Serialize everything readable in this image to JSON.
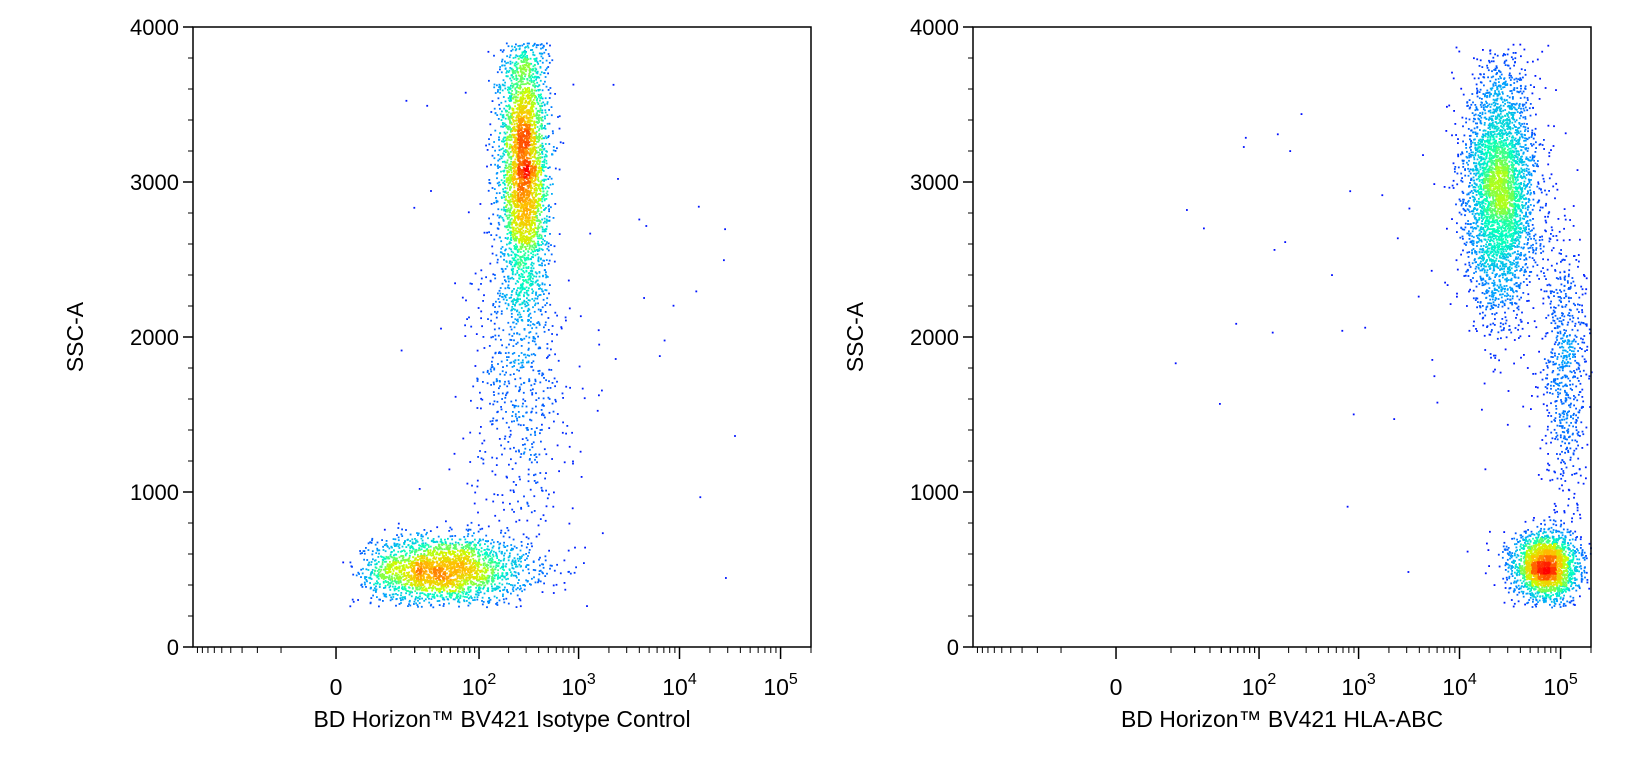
{
  "chart_data": [
    {
      "type": "scatter",
      "title": "",
      "xlabel": "BD Horizon™ BV421 Isotype Control",
      "ylabel": "SSC-A",
      "x_scale": "biexponential",
      "y_scale": "linear",
      "xlim": [
        -100,
        200000
      ],
      "ylim": [
        0,
        4000
      ],
      "grid": false,
      "colormap": [
        "#0000ff",
        "#00a0ff",
        "#00ffc0",
        "#c8ff00",
        "#ffc000",
        "#ff0000"
      ],
      "x_ticks": [
        {
          "value": 0,
          "base": "0",
          "exp": ""
        },
        {
          "value": 100,
          "base": "10",
          "exp": "2"
        },
        {
          "value": 1000,
          "base": "10",
          "exp": "3"
        },
        {
          "value": 10000,
          "base": "10",
          "exp": "4"
        },
        {
          "value": 100000,
          "base": "10",
          "exp": "5"
        }
      ],
      "y_ticks": [
        0,
        1000,
        2000,
        3000,
        4000
      ],
      "populations": [
        {
          "x_center": 40,
          "y_center": 500,
          "x_spread_decades": 0.45,
          "y_spread": 110,
          "count": 2600
        },
        {
          "x_center": 280,
          "y_center": 3100,
          "x_spread_decades": 0.12,
          "y_spread": 450,
          "count": 3600
        },
        {
          "x_center": 250,
          "y_center": 1700,
          "x_spread_decades": 0.25,
          "y_spread": 500,
          "count": 600
        }
      ]
    },
    {
      "type": "scatter",
      "title": "",
      "xlabel": "BD Horizon™ BV421 HLA-ABC",
      "ylabel": "SSC-A",
      "x_scale": "biexponential",
      "y_scale": "linear",
      "xlim": [
        -100,
        200000
      ],
      "ylim": [
        0,
        4000
      ],
      "grid": false,
      "colormap": [
        "#0000ff",
        "#00a0ff",
        "#00ffc0",
        "#c8ff00",
        "#ffc000",
        "#ff0000"
      ],
      "x_ticks": [
        {
          "value": 0,
          "base": "0",
          "exp": ""
        },
        {
          "value": 100,
          "base": "10",
          "exp": "2"
        },
        {
          "value": 1000,
          "base": "10",
          "exp": "3"
        },
        {
          "value": 10000,
          "base": "10",
          "exp": "4"
        },
        {
          "value": 100000,
          "base": "10",
          "exp": "5"
        }
      ],
      "y_ticks": [
        0,
        1000,
        2000,
        3000,
        4000
      ],
      "populations": [
        {
          "x_center": 25000,
          "y_center": 2950,
          "x_spread_decades": 0.17,
          "y_spread": 380,
          "count": 3800
        },
        {
          "x_center": 70000,
          "y_center": 520,
          "x_spread_decades": 0.16,
          "y_spread": 110,
          "count": 2400
        },
        {
          "x_center": 110000,
          "y_center": 1800,
          "x_spread_decades": 0.12,
          "y_spread": 450,
          "count": 700
        }
      ]
    }
  ]
}
